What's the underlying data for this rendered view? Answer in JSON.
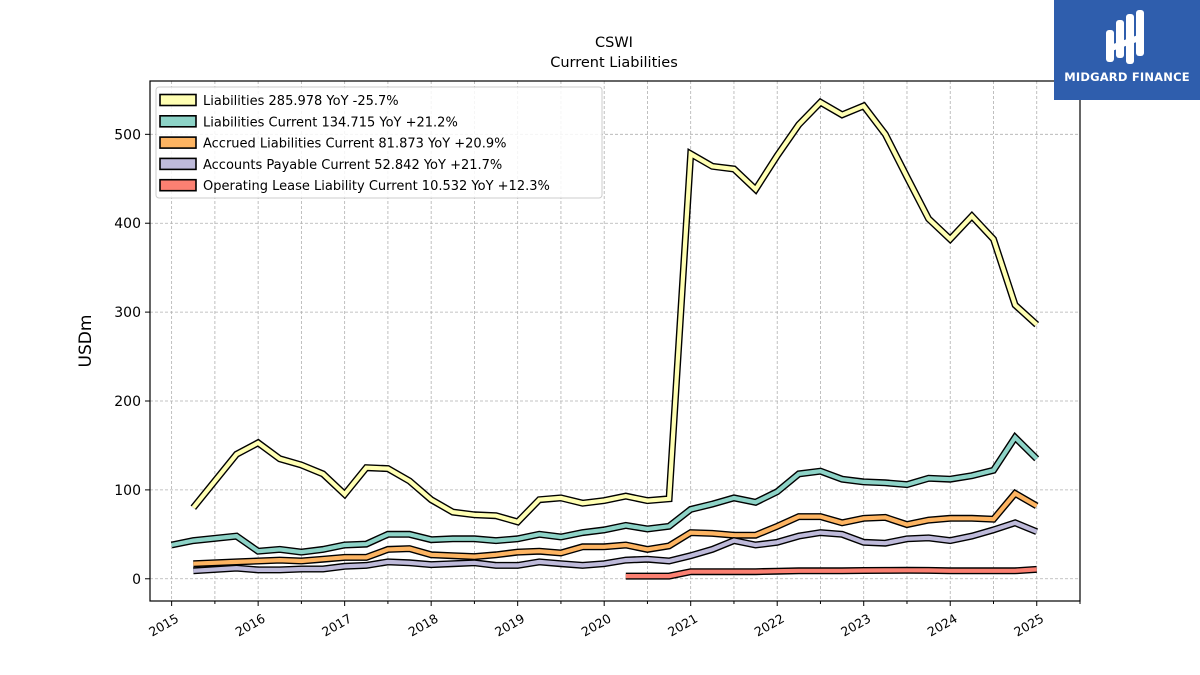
{
  "brand": {
    "name": "MIDGARD FINANCE",
    "logo_icon": "midgard-logo-icon",
    "bg_color": "#2f5ead"
  },
  "chart_data": {
    "type": "line",
    "title": "CSWI",
    "subtitle": "Current  Liabilities",
    "xlabel": "",
    "ylabel": "USDm",
    "xlim": [
      2014.75,
      2025.5
    ],
    "ylim": [
      -25,
      560
    ],
    "grid": true,
    "legend_position": "top-left",
    "x_ticks": [
      "2015",
      "2016",
      "2017",
      "2018",
      "2019",
      "2020",
      "2021",
      "2022",
      "2023",
      "2024",
      "2025"
    ],
    "y_ticks": [
      "0",
      "100",
      "200",
      "300",
      "400",
      "500"
    ],
    "series": [
      {
        "name": "Liabilities  285.978 YoY -25.7%",
        "color": "#ffffb3",
        "points": [
          [
            2015.25,
            80
          ],
          [
            2015.75,
            140
          ],
          [
            2016.0,
            153
          ],
          [
            2016.25,
            135
          ],
          [
            2016.5,
            128
          ],
          [
            2016.75,
            118
          ],
          [
            2017.0,
            95
          ],
          [
            2017.25,
            125
          ],
          [
            2017.5,
            124
          ],
          [
            2017.75,
            110
          ],
          [
            2018.0,
            89
          ],
          [
            2018.25,
            75
          ],
          [
            2018.5,
            72
          ],
          [
            2018.75,
            71
          ],
          [
            2019.0,
            64
          ],
          [
            2019.25,
            89
          ],
          [
            2019.5,
            91
          ],
          [
            2019.75,
            85
          ],
          [
            2020.0,
            88
          ],
          [
            2020.25,
            93
          ],
          [
            2020.5,
            88
          ],
          [
            2020.75,
            90
          ],
          [
            2021.0,
            478
          ],
          [
            2021.25,
            464
          ],
          [
            2021.5,
            461
          ],
          [
            2021.75,
            438
          ],
          [
            2022.0,
            476
          ],
          [
            2022.25,
            511
          ],
          [
            2022.5,
            536
          ],
          [
            2022.75,
            522
          ],
          [
            2023.0,
            532
          ],
          [
            2023.25,
            500
          ],
          [
            2023.5,
            452
          ],
          [
            2023.75,
            405
          ],
          [
            2024.0,
            382
          ],
          [
            2024.25,
            408
          ],
          [
            2024.5,
            382
          ],
          [
            2024.75,
            308
          ],
          [
            2025.0,
            286
          ]
        ]
      },
      {
        "name": "Liabilities Current  134.715 YoY +21.2%",
        "color": "#8dd3c7",
        "points": [
          [
            2015.0,
            38
          ],
          [
            2015.25,
            43
          ],
          [
            2015.75,
            48
          ],
          [
            2016.0,
            31
          ],
          [
            2016.25,
            33
          ],
          [
            2016.5,
            30
          ],
          [
            2016.75,
            33
          ],
          [
            2017.0,
            38
          ],
          [
            2017.25,
            39
          ],
          [
            2017.5,
            50
          ],
          [
            2017.75,
            50
          ],
          [
            2018.0,
            44
          ],
          [
            2018.25,
            45
          ],
          [
            2018.5,
            45
          ],
          [
            2018.75,
            43
          ],
          [
            2019.0,
            45
          ],
          [
            2019.25,
            50
          ],
          [
            2019.5,
            47
          ],
          [
            2019.75,
            52
          ],
          [
            2020.0,
            55
          ],
          [
            2020.25,
            60
          ],
          [
            2020.5,
            56
          ],
          [
            2020.75,
            59
          ],
          [
            2021.0,
            78
          ],
          [
            2021.25,
            84
          ],
          [
            2021.5,
            91
          ],
          [
            2021.75,
            86
          ],
          [
            2022.0,
            98
          ],
          [
            2022.25,
            118
          ],
          [
            2022.5,
            121
          ],
          [
            2022.75,
            112
          ],
          [
            2023.0,
            109
          ],
          [
            2023.25,
            108
          ],
          [
            2023.5,
            106
          ],
          [
            2023.75,
            113
          ],
          [
            2024.0,
            112
          ],
          [
            2024.25,
            116
          ],
          [
            2024.5,
            122
          ],
          [
            2024.75,
            159
          ],
          [
            2025.0,
            135
          ]
        ]
      },
      {
        "name": "Accrued Liabilities Current  81.873 YoY +20.9%",
        "color": "#fdb462",
        "points": [
          [
            2015.25,
            17
          ],
          [
            2015.75,
            19
          ],
          [
            2016.0,
            20
          ],
          [
            2016.25,
            21
          ],
          [
            2016.5,
            20
          ],
          [
            2016.75,
            22
          ],
          [
            2017.0,
            24
          ],
          [
            2017.25,
            24
          ],
          [
            2017.5,
            33
          ],
          [
            2017.75,
            34
          ],
          [
            2018.0,
            27
          ],
          [
            2018.25,
            26
          ],
          [
            2018.5,
            25
          ],
          [
            2018.75,
            27
          ],
          [
            2019.0,
            30
          ],
          [
            2019.25,
            31
          ],
          [
            2019.5,
            29
          ],
          [
            2019.75,
            36
          ],
          [
            2020.0,
            36
          ],
          [
            2020.25,
            38
          ],
          [
            2020.5,
            33
          ],
          [
            2020.75,
            37
          ],
          [
            2021.0,
            52
          ],
          [
            2021.25,
            51
          ],
          [
            2021.5,
            49
          ],
          [
            2021.75,
            49
          ],
          [
            2022.0,
            59
          ],
          [
            2022.25,
            70
          ],
          [
            2022.5,
            70
          ],
          [
            2022.75,
            63
          ],
          [
            2023.0,
            68
          ],
          [
            2023.25,
            69
          ],
          [
            2023.5,
            61
          ],
          [
            2023.75,
            66
          ],
          [
            2024.0,
            68
          ],
          [
            2024.25,
            68
          ],
          [
            2024.5,
            67
          ],
          [
            2024.75,
            96
          ],
          [
            2025.0,
            82
          ]
        ]
      },
      {
        "name": "Accounts Payable Current  52.842 YoY +21.7%",
        "color": "#bebada",
        "points": [
          [
            2015.25,
            9
          ],
          [
            2015.75,
            12
          ],
          [
            2016.0,
            10
          ],
          [
            2016.25,
            10
          ],
          [
            2016.5,
            11
          ],
          [
            2016.75,
            11
          ],
          [
            2017.0,
            14
          ],
          [
            2017.25,
            15
          ],
          [
            2017.5,
            19
          ],
          [
            2017.75,
            18
          ],
          [
            2018.0,
            16
          ],
          [
            2018.25,
            17
          ],
          [
            2018.5,
            18
          ],
          [
            2018.75,
            15
          ],
          [
            2019.0,
            15
          ],
          [
            2019.25,
            19
          ],
          [
            2019.5,
            17
          ],
          [
            2019.75,
            15
          ],
          [
            2020.0,
            17
          ],
          [
            2020.25,
            21
          ],
          [
            2020.5,
            22
          ],
          [
            2020.75,
            20
          ],
          [
            2021.0,
            26
          ],
          [
            2021.25,
            33
          ],
          [
            2021.5,
            43
          ],
          [
            2021.75,
            38
          ],
          [
            2022.0,
            41
          ],
          [
            2022.25,
            48
          ],
          [
            2022.5,
            52
          ],
          [
            2022.75,
            50
          ],
          [
            2023.0,
            41
          ],
          [
            2023.25,
            40
          ],
          [
            2023.5,
            45
          ],
          [
            2023.75,
            46
          ],
          [
            2024.0,
            43
          ],
          [
            2024.25,
            48
          ],
          [
            2024.5,
            55
          ],
          [
            2024.75,
            63
          ],
          [
            2025.0,
            53
          ]
        ]
      },
      {
        "name": "Operating Lease Liability Current  10.532 YoY +12.3%",
        "color": "#fb8072",
        "points": [
          [
            2020.25,
            3
          ],
          [
            2020.5,
            3
          ],
          [
            2020.75,
            3
          ],
          [
            2021.0,
            8
          ],
          [
            2021.25,
            8
          ],
          [
            2021.5,
            8
          ],
          [
            2021.75,
            8
          ],
          [
            2022.0,
            8.5
          ],
          [
            2022.25,
            9
          ],
          [
            2022.5,
            9
          ],
          [
            2022.75,
            9
          ],
          [
            2023.0,
            9.3
          ],
          [
            2023.25,
            9.4
          ],
          [
            2023.5,
            9.5
          ],
          [
            2023.75,
            9.4
          ],
          [
            2024.0,
            9
          ],
          [
            2024.25,
            9
          ],
          [
            2024.5,
            9
          ],
          [
            2024.75,
            9
          ],
          [
            2025.0,
            10.5
          ]
        ]
      }
    ]
  }
}
